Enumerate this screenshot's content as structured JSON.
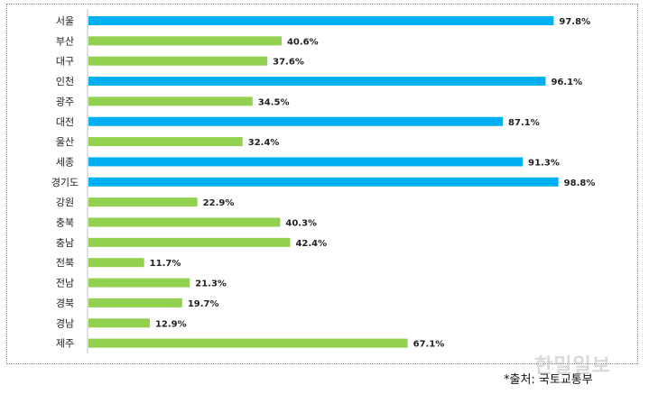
{
  "chart_data": {
    "type": "bar",
    "orientation": "horizontal",
    "categories": [
      "서울",
      "부산",
      "대구",
      "인천",
      "광주",
      "대전",
      "울산",
      "세종",
      "경기도",
      "강원",
      "충북",
      "충남",
      "전북",
      "전남",
      "경북",
      "경남",
      "제주"
    ],
    "values": [
      97.8,
      40.6,
      37.6,
      96.1,
      34.5,
      87.1,
      32.4,
      91.3,
      98.8,
      22.9,
      40.3,
      42.4,
      11.7,
      21.3,
      19.7,
      12.9,
      67.1
    ],
    "value_labels": [
      "97.8%",
      "40.6%",
      "37.6%",
      "96.1%",
      "34.5%",
      "87.1%",
      "32.4%",
      "91.3%",
      "98.8%",
      "22.9%",
      "40.3%",
      "42.4%",
      "11.7%",
      "21.3%",
      "19.7%",
      "12.9%",
      "67.1%"
    ],
    "highlight": [
      true,
      false,
      false,
      true,
      false,
      true,
      false,
      true,
      true,
      false,
      false,
      false,
      false,
      false,
      false,
      false,
      false
    ],
    "colors": {
      "highlight": "#00B0F0",
      "normal": "#92D050"
    },
    "xlim": [
      0,
      100
    ],
    "grid": false
  },
  "source": "*출처: 국토교통부",
  "watermark": "한밀일보"
}
